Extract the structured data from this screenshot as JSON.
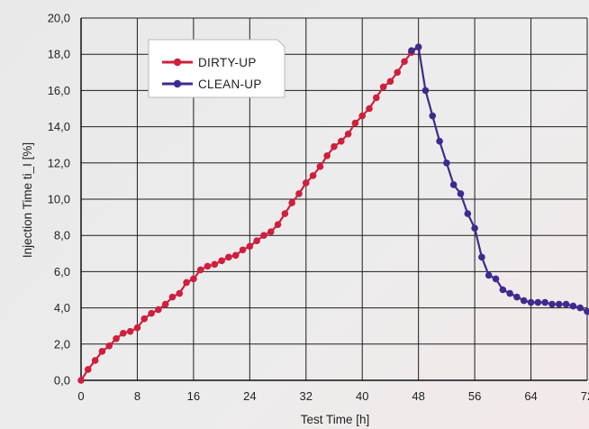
{
  "chart_data": {
    "type": "line",
    "xlabel": "Test Time [h]",
    "ylabel": "Injection Time ti_I [%]",
    "xlim": [
      0,
      72
    ],
    "ylim": [
      0,
      20
    ],
    "x_ticks": [
      "0",
      "8",
      "16",
      "24",
      "32",
      "40",
      "48",
      "56",
      "64",
      "72"
    ],
    "y_ticks": [
      "0,0",
      "2,0",
      "4,0",
      "6,0",
      "8,0",
      "10,0",
      "12,0",
      "14,0",
      "16,0",
      "18,0",
      "20,0"
    ],
    "grid": true,
    "legend_position": "top-left",
    "series": [
      {
        "name": "DIRTY-UP",
        "color": "#cf1f3c",
        "x": [
          0,
          1,
          2,
          3,
          4,
          5,
          6,
          7,
          8,
          9,
          10,
          11,
          12,
          13,
          14,
          15,
          16,
          17,
          18,
          19,
          20,
          21,
          22,
          23,
          24,
          25,
          26,
          27,
          28,
          29,
          30,
          31,
          32,
          33,
          34,
          35,
          36,
          37,
          38,
          39,
          40,
          41,
          42,
          43,
          44,
          45,
          46,
          47,
          48
        ],
        "y": [
          0.0,
          0.6,
          1.1,
          1.6,
          1.9,
          2.3,
          2.6,
          2.7,
          2.9,
          3.4,
          3.7,
          3.9,
          4.2,
          4.6,
          4.8,
          5.4,
          5.6,
          6.1,
          6.3,
          6.4,
          6.6,
          6.8,
          6.9,
          7.2,
          7.4,
          7.7,
          8.0,
          8.2,
          8.6,
          9.2,
          9.8,
          10.3,
          10.9,
          11.3,
          11.8,
          12.4,
          12.9,
          13.2,
          13.6,
          14.2,
          14.6,
          15.0,
          15.6,
          16.2,
          16.5,
          17.0,
          17.6,
          18.1,
          18.4
        ]
      },
      {
        "name": "CLEAN-UP",
        "color": "#3f2a8f",
        "x": [
          47,
          48,
          49,
          50,
          51,
          52,
          53,
          54,
          55,
          56,
          57,
          58,
          59,
          60,
          61,
          62,
          63,
          64,
          65,
          66,
          67,
          68,
          69,
          70,
          71,
          72
        ],
        "y": [
          18.2,
          18.4,
          16.0,
          14.6,
          13.2,
          12.0,
          10.8,
          10.3,
          9.2,
          8.4,
          6.8,
          5.8,
          5.6,
          5.0,
          4.8,
          4.6,
          4.4,
          4.3,
          4.3,
          4.3,
          4.2,
          4.2,
          4.2,
          4.1,
          4.0,
          3.8
        ]
      }
    ]
  }
}
